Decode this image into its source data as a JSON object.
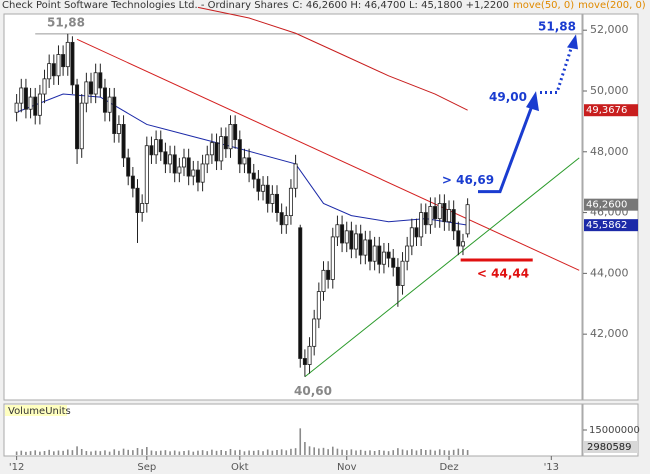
{
  "chart_data": {
    "type": "candlestick",
    "title": "Check Point Software Technologies Ltd. - Ordinary Shares",
    "quote": "C: 46,2600 H: 46,4700 L: 45,1800 +1,2200",
    "xlim": [
      -2.5,
      121.6
    ],
    "xticks": [
      {
        "value": 0,
        "label": "'12"
      },
      {
        "value": 28,
        "label": "Sep"
      },
      {
        "value": 48,
        "label": "Okt"
      },
      {
        "value": 71,
        "label": "Nov"
      },
      {
        "value": 93,
        "label": "Dez"
      },
      {
        "value": 115,
        "label": "'13"
      }
    ],
    "ylim": [
      39.9,
      52.5
    ],
    "yticks": [
      {
        "value": 42,
        "label": "42,000"
      },
      {
        "value": 44,
        "label": "44,000"
      },
      {
        "value": 46,
        "label": "46,000"
      },
      {
        "value": 48,
        "label": "48,000"
      },
      {
        "value": 50,
        "label": "50,000"
      },
      {
        "value": 52,
        "label": "52,000"
      }
    ],
    "up_color": "#ffffff",
    "down_color": "#111111",
    "candles": [
      [
        49.3,
        49.9,
        49.0,
        49.6
      ],
      [
        49.6,
        50.4,
        49.3,
        50.1
      ],
      [
        50.1,
        50.4,
        49.1,
        49.4
      ],
      [
        49.4,
        50.1,
        49.1,
        49.8
      ],
      [
        49.8,
        50.1,
        48.9,
        49.2
      ],
      [
        49.2,
        50.2,
        48.9,
        49.9
      ],
      [
        49.9,
        50.7,
        49.6,
        50.4
      ],
      [
        50.4,
        51.2,
        50.1,
        50.9
      ],
      [
        50.9,
        51.2,
        50.2,
        50.5
      ],
      [
        50.5,
        51.5,
        50.2,
        51.2
      ],
      [
        51.2,
        51.5,
        50.5,
        50.8
      ],
      [
        50.8,
        51.88,
        50.5,
        51.6
      ],
      [
        51.6,
        51.8,
        49.9,
        50.2
      ],
      [
        50.2,
        50.4,
        47.6,
        48.1
      ],
      [
        48.1,
        49.9,
        47.8,
        49.6
      ],
      [
        49.6,
        50.6,
        49.3,
        50.3
      ],
      [
        50.3,
        50.6,
        49.6,
        49.9
      ],
      [
        49.9,
        50.9,
        49.6,
        50.6
      ],
      [
        50.6,
        50.9,
        49.8,
        50.1
      ],
      [
        50.1,
        50.4,
        49.0,
        49.3
      ],
      [
        49.3,
        50.1,
        49.0,
        49.8
      ],
      [
        49.8,
        50.1,
        48.3,
        48.6
      ],
      [
        48.6,
        49.2,
        48.3,
        48.9
      ],
      [
        48.9,
        49.2,
        47.5,
        47.8
      ],
      [
        47.8,
        48.1,
        46.9,
        47.2
      ],
      [
        47.2,
        47.5,
        46.5,
        46.8
      ],
      [
        46.8,
        47.1,
        45.0,
        46.0
      ],
      [
        46.0,
        46.6,
        45.7,
        46.3
      ],
      [
        46.3,
        48.5,
        46.0,
        48.2
      ],
      [
        48.2,
        48.5,
        47.6,
        47.9
      ],
      [
        47.9,
        48.7,
        47.6,
        48.4
      ],
      [
        48.4,
        48.7,
        47.7,
        48.0
      ],
      [
        48.0,
        48.3,
        47.3,
        47.6
      ],
      [
        47.6,
        48.2,
        47.3,
        47.9
      ],
      [
        47.9,
        48.2,
        47.0,
        47.3
      ],
      [
        47.3,
        47.8,
        47.0,
        47.5
      ],
      [
        47.5,
        48.1,
        47.2,
        47.8
      ],
      [
        47.8,
        48.1,
        46.9,
        47.2
      ],
      [
        47.2,
        47.7,
        46.9,
        47.4
      ],
      [
        47.4,
        47.7,
        46.7,
        47.0
      ],
      [
        47.0,
        47.9,
        46.7,
        47.6
      ],
      [
        47.6,
        48.2,
        47.3,
        47.9
      ],
      [
        47.9,
        48.6,
        47.6,
        48.3
      ],
      [
        48.3,
        48.6,
        47.4,
        47.7
      ],
      [
        47.7,
        48.8,
        47.4,
        48.5
      ],
      [
        48.5,
        48.8,
        47.8,
        48.1
      ],
      [
        48.1,
        49.2,
        47.8,
        48.9
      ],
      [
        48.9,
        49.2,
        48.1,
        48.4
      ],
      [
        48.4,
        48.7,
        47.3,
        47.6
      ],
      [
        47.6,
        48.1,
        47.3,
        47.8
      ],
      [
        47.8,
        48.1,
        47.0,
        47.3
      ],
      [
        47.3,
        47.6,
        46.8,
        47.1
      ],
      [
        47.1,
        47.4,
        46.4,
        46.7
      ],
      [
        46.7,
        47.2,
        46.4,
        46.9
      ],
      [
        46.9,
        47.2,
        46.0,
        46.3
      ],
      [
        46.3,
        46.9,
        46.0,
        46.6
      ],
      [
        46.6,
        46.9,
        45.7,
        46.0
      ],
      [
        46.0,
        46.3,
        45.3,
        45.6
      ],
      [
        45.6,
        46.2,
        45.3,
        45.9
      ],
      [
        45.9,
        47.1,
        45.6,
        46.8
      ],
      [
        46.8,
        47.9,
        46.5,
        47.6
      ],
      [
        45.5,
        45.6,
        40.9,
        41.2
      ],
      [
        41.2,
        41.5,
        40.6,
        41.0
      ],
      [
        41.0,
        41.9,
        40.7,
        41.6
      ],
      [
        41.6,
        42.8,
        41.3,
        42.5
      ],
      [
        42.5,
        43.7,
        42.2,
        43.4
      ],
      [
        43.4,
        44.4,
        43.1,
        44.1
      ],
      [
        44.1,
        44.4,
        43.5,
        43.8
      ],
      [
        43.8,
        45.5,
        43.5,
        45.2
      ],
      [
        45.2,
        45.9,
        44.9,
        45.6
      ],
      [
        45.6,
        45.9,
        44.7,
        45.0
      ],
      [
        45.0,
        45.7,
        44.7,
        45.4
      ],
      [
        45.4,
        45.7,
        44.5,
        44.8
      ],
      [
        44.8,
        45.6,
        44.5,
        45.3
      ],
      [
        45.3,
        45.6,
        44.3,
        44.6
      ],
      [
        44.6,
        45.4,
        44.3,
        45.1
      ],
      [
        45.1,
        45.4,
        44.1,
        44.4
      ],
      [
        44.4,
        45.2,
        44.1,
        44.9
      ],
      [
        44.9,
        45.2,
        44.0,
        44.3
      ],
      [
        44.3,
        45.0,
        44.0,
        44.7
      ],
      [
        44.7,
        45.0,
        44.2,
        44.5
      ],
      [
        44.5,
        44.8,
        43.9,
        44.2
      ],
      [
        44.2,
        44.5,
        42.9,
        43.6
      ],
      [
        43.6,
        44.7,
        43.3,
        44.4
      ],
      [
        44.4,
        45.2,
        44.1,
        44.9
      ],
      [
        44.9,
        45.8,
        44.6,
        45.5
      ],
      [
        45.5,
        45.8,
        44.9,
        45.2
      ],
      [
        45.2,
        46.3,
        44.9,
        46.0
      ],
      [
        46.0,
        46.3,
        45.3,
        45.6
      ],
      [
        45.6,
        46.5,
        45.3,
        46.2
      ],
      [
        46.2,
        46.5,
        45.5,
        45.8
      ],
      [
        45.8,
        46.6,
        45.5,
        46.3
      ],
      [
        46.3,
        46.6,
        45.4,
        45.7
      ],
      [
        45.7,
        46.4,
        45.4,
        46.1
      ],
      [
        46.1,
        46.4,
        45.1,
        45.4
      ],
      [
        45.4,
        45.7,
        44.6,
        44.9
      ],
      [
        44.9,
        45.3,
        44.6,
        45.04
      ],
      [
        45.3,
        46.47,
        45.18,
        46.26
      ]
    ],
    "last_label": "46,2600",
    "last_color": "#777777",
    "series": [
      {
        "name": "move(50, 0)",
        "color": "#1c2aa8",
        "label_color": "#e08a00",
        "x": [
          0,
          10,
          18,
          28,
          38,
          48,
          60,
          66,
          72,
          80,
          88,
          97
        ],
        "values": [
          49.3,
          49.9,
          49.8,
          48.9,
          48.5,
          48.1,
          47.6,
          46.3,
          45.9,
          45.7,
          45.8,
          45.5862
        ],
        "end_label": "45,5862"
      },
      {
        "name": "move(200, 0)",
        "color": "#c81e1e",
        "label_color": "#e08a00",
        "x": [
          39,
          50,
          60,
          70,
          80,
          90,
          97
        ],
        "values": [
          52.75,
          52.4,
          51.9,
          51.2,
          50.5,
          49.9,
          49.3676
        ],
        "end_label": "49,3676"
      }
    ],
    "trendlines": [
      {
        "color": "#d42020",
        "x": [
          13,
          121
        ],
        "values": [
          51.7,
          44.1
        ]
      },
      {
        "color": "#2a9a2a",
        "x": [
          62,
          121
        ],
        "values": [
          40.6,
          47.8
        ]
      }
    ],
    "annotations": [
      {
        "text": "51,88",
        "value": 51.88,
        "color": "#888888"
      },
      {
        "text": "40,60",
        "value": 40.6,
        "color": "#888888"
      },
      {
        "text": "> 46,69",
        "value": 46.69,
        "color": "#1a3cd0"
      },
      {
        "text": "49,00",
        "value": 49.0,
        "color": "#1a3cd0"
      },
      {
        "text": "51,88",
        "value": 51.88,
        "color": "#1a3cd0"
      },
      {
        "text": "< 44,44",
        "value": 44.44,
        "color": "#e01010"
      }
    ],
    "volume": {
      "label": "VolumeUnits",
      "color": "#8a8a8a",
      "ylim": [
        0,
        30000000
      ],
      "yticks": [
        15000000
      ],
      "end_label": "2980589",
      "values": [
        2100000,
        2600000,
        1900000,
        2300000,
        2800000,
        2000000,
        2400000,
        3100000,
        2200000,
        2700000,
        2500000,
        3300000,
        2900000,
        5200000,
        3600000,
        2400000,
        2100000,
        2600000,
        2300000,
        2800000,
        2000000,
        3400000,
        2500000,
        3800000,
        3100000,
        2900000,
        4200000,
        3500000,
        4800000,
        2700000,
        2300000,
        2600000,
        2900000,
        2200000,
        2700000,
        2100000,
        2400000,
        2800000,
        2000000,
        2600000,
        2900000,
        2300000,
        3200000,
        2500000,
        3000000,
        2400000,
        3600000,
        2800000,
        3100000,
        2200000,
        2700000,
        2500000,
        2900000,
        2300000,
        3300000,
        2600000,
        3000000,
        3400000,
        2800000,
        3700000,
        4100000,
        16000000,
        7800000,
        5200000,
        4600000,
        3900000,
        4300000,
        3500000,
        5000000,
        3800000,
        3200000,
        2900000,
        3400000,
        2700000,
        3100000,
        2500000,
        2800000,
        2400000,
        3000000,
        2600000,
        2300000,
        2900000,
        4100000,
        3300000,
        2800000,
        3500000,
        2700000,
        3600000,
        3000000,
        3200000,
        2600000,
        3400000,
        2900000,
        2700000,
        3100000,
        3800000,
        3500000,
        2980589
      ]
    }
  }
}
